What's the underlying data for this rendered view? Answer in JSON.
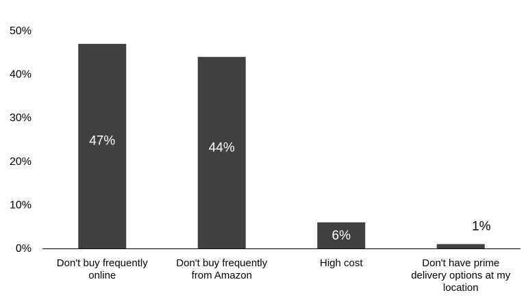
{
  "chart_data": {
    "type": "bar",
    "categories": [
      [
        "Don't buy frequently",
        "online"
      ],
      [
        "Don't buy frequently",
        "from Amazon"
      ],
      [
        "High cost"
      ],
      [
        "Don't have prime",
        "delivery options at my",
        "location"
      ]
    ],
    "values": [
      47,
      44,
      6,
      1
    ],
    "data_labels": [
      "47%",
      "44%",
      "6%",
      "1%"
    ],
    "title": "",
    "xlabel": "",
    "ylabel": "",
    "ylim": [
      0,
      50
    ],
    "yticks": [
      0,
      10,
      20,
      30,
      40,
      50
    ],
    "ytick_labels": [
      "0%",
      "10%",
      "20%",
      "30%",
      "40%",
      "50%"
    ],
    "grid": false,
    "legend": "none",
    "colors": {
      "bar": "#404040",
      "axis": "#000000",
      "label_inside": "#ffffff",
      "label_outside": "#000000"
    }
  }
}
